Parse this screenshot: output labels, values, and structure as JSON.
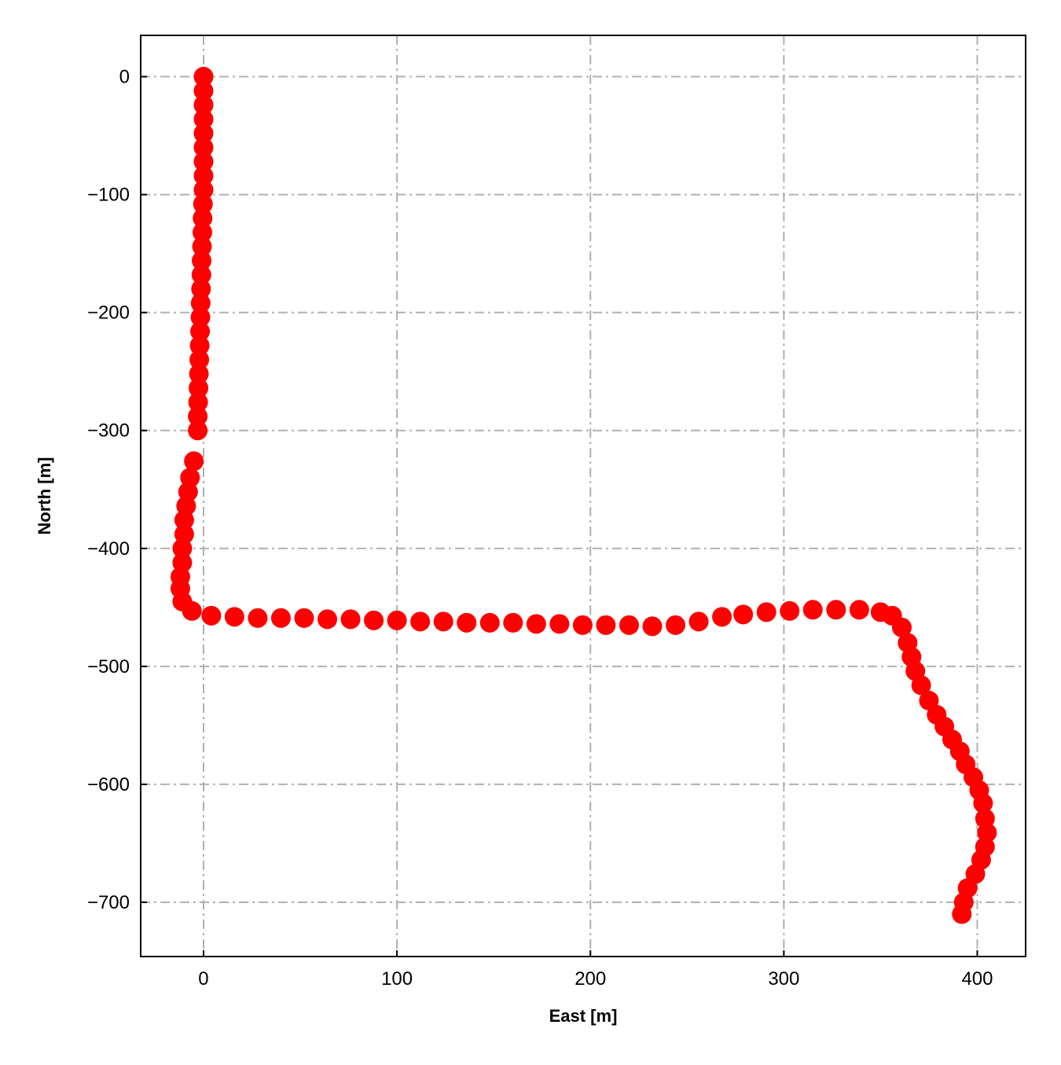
{
  "chart_data": {
    "type": "scatter",
    "title": "",
    "xlabel": "East [m]",
    "ylabel": "North [m]",
    "xlim": [
      -32.5,
      425
    ],
    "ylim": [
      -746,
      35
    ],
    "xticks": [
      0,
      100,
      200,
      300,
      400
    ],
    "yticks": [
      0,
      -100,
      -200,
      -300,
      -400,
      -500,
      -600,
      -700
    ],
    "xtick_labels": [
      "0",
      "100",
      "200",
      "300",
      "400"
    ],
    "ytick_labels": [
      "0",
      "−100",
      "−200",
      "−300",
      "−400",
      "−500",
      "−600",
      "−700"
    ],
    "grid": true,
    "grid_style": "dash-dot",
    "colors": {
      "marker": "#ff0000",
      "grid": "#b0b0b0"
    },
    "series": [
      {
        "x": [
          0,
          0,
          0,
          0,
          0,
          0,
          0,
          0,
          0,
          -0.3,
          -0.5,
          -0.6,
          -0.8,
          -1,
          -1.1,
          -1.3,
          -1.5,
          -1.6,
          -1.8,
          -2,
          -2.2,
          -2.4,
          -2.6,
          -2.8,
          -3,
          -3,
          -5,
          -7,
          -8,
          -9,
          -10,
          -10,
          -11,
          -11,
          -12,
          -12,
          -11,
          -6,
          4,
          16,
          28,
          40,
          52,
          64,
          76,
          88,
          100,
          112,
          124,
          136,
          148,
          160,
          172,
          184,
          196,
          208,
          220,
          232,
          244,
          256,
          268,
          279,
          291,
          303,
          315,
          327,
          339,
          350,
          356,
          361,
          364,
          366,
          368,
          371,
          375,
          379,
          383,
          387,
          391,
          394,
          398,
          401,
          403,
          404,
          405,
          404,
          402,
          399,
          395,
          393,
          392
        ],
        "y": [
          0,
          -12,
          -24,
          -36,
          -48,
          -60,
          -72,
          -84,
          -96,
          -108,
          -120,
          -132,
          -144,
          -156,
          -168,
          -180,
          -192,
          -204,
          -216,
          -228,
          -240,
          -252,
          -264,
          -276,
          -288,
          -300,
          -326,
          -340,
          -352,
          -364,
          -376,
          -388,
          -400,
          -412,
          -424,
          -434,
          -445,
          -453,
          -457,
          -458,
          -459,
          -459,
          -459,
          -460,
          -460,
          -461,
          -461,
          -462,
          -462,
          -463,
          -463,
          -463,
          -464,
          -464,
          -465,
          -465,
          -465,
          -466,
          -465,
          -462,
          -458,
          -456,
          -454,
          -453,
          -452,
          -452,
          -452,
          -454,
          -457,
          -467,
          -480,
          -492,
          -504,
          -516,
          -529,
          -541,
          -551,
          -562,
          -572,
          -583,
          -594,
          -605,
          -616,
          -629,
          -641,
          -653,
          -664,
          -676,
          -688,
          -700,
          -710
        ]
      }
    ]
  }
}
